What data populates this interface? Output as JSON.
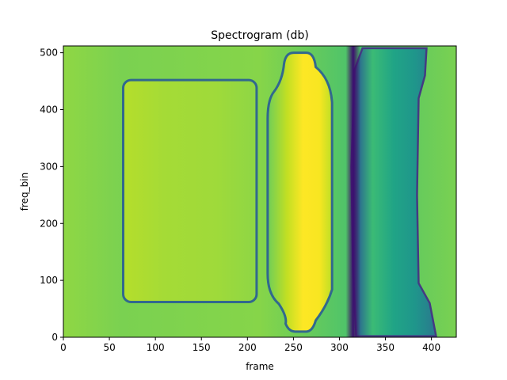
{
  "chart_data": {
    "type": "heatmap",
    "title": "Spectrogram (db)",
    "xlabel": "frame",
    "ylabel": "freq_bin",
    "xlim": [
      0,
      427
    ],
    "ylim": [
      0,
      512
    ],
    "x_ticks": [
      0,
      50,
      100,
      150,
      200,
      250,
      300,
      350,
      400
    ],
    "y_ticks": [
      0,
      100,
      200,
      300,
      400,
      500
    ],
    "grid": false,
    "legend": "none",
    "colormap": "viridis",
    "colors": {
      "light_green": "#a3d93a",
      "green": "#6cce59",
      "teal": "#27ad81",
      "blue": "#31688e",
      "purple": "#440154",
      "yellow": "#fde725"
    },
    "regions": [
      {
        "kind": "rounded-block",
        "x": [
          65,
          210
        ],
        "y": [
          62,
          452
        ],
        "fill": "#a0da39"
      },
      {
        "kind": "bulge-block",
        "x": [
          222,
          292
        ],
        "y": [
          10,
          500
        ],
        "fill": "#fde725"
      },
      {
        "kind": "band-block",
        "x": [
          313,
          405
        ],
        "y": [
          0,
          512
        ],
        "fill": "#2fb47c"
      }
    ],
    "background_level": "#7ad151"
  }
}
